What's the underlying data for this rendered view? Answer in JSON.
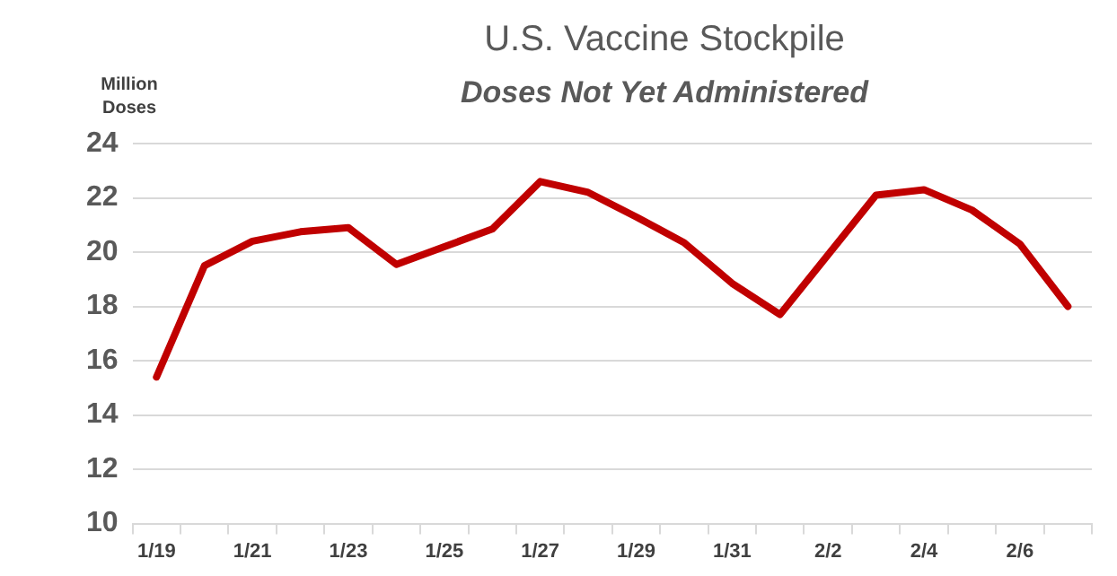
{
  "chart_data": {
    "type": "line",
    "title": "U.S. Vaccine Stockpile",
    "subtitle": "Doses Not Yet Administered",
    "ylabel": "Million Doses",
    "categories": [
      "1/19",
      null,
      "1/21",
      null,
      "1/23",
      null,
      "1/25",
      null,
      "1/27",
      null,
      "1/29",
      null,
      "1/31",
      null,
      "2/2",
      null,
      "2/4",
      null,
      "2/6",
      null
    ],
    "series": [
      {
        "color": "#c00000",
        "values": [
          15.4,
          19.5,
          20.4,
          20.75,
          20.9,
          19.55,
          20.2,
          20.85,
          22.6,
          22.2,
          21.3,
          20.35,
          18.85,
          17.7,
          19.9,
          22.1,
          22.3,
          21.55,
          20.3,
          18.0
        ]
      }
    ],
    "ylim": [
      10,
      24
    ],
    "yticks": [
      10,
      12,
      14,
      16,
      18,
      20,
      22,
      24
    ],
    "grid": "y",
    "legend": false,
    "marker": "none",
    "line_style": "solid"
  }
}
